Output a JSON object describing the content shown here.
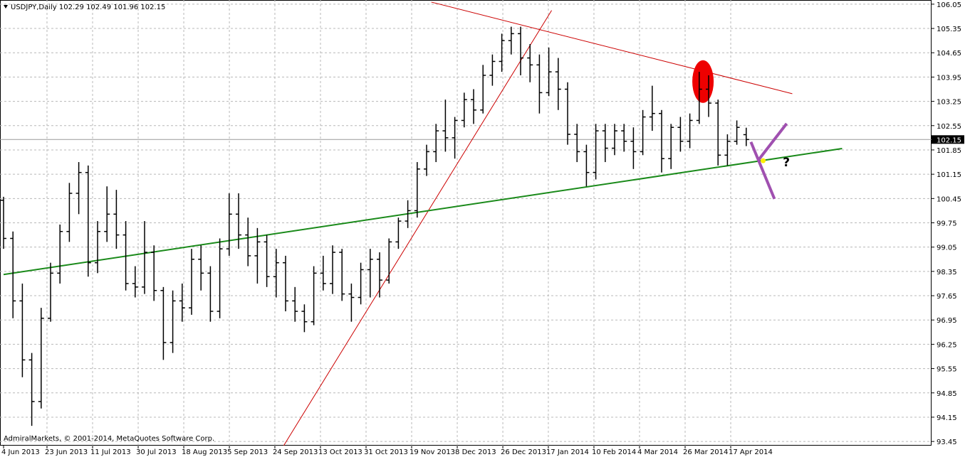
{
  "chart_data": {
    "type": "ohlc",
    "title": "USDJPY,Daily  102.29 102.49 101.96 102.15",
    "footer": "AdmiralMarkets, © 2001-2014, MetaQuotes Software Corp.",
    "color": "#000000",
    "grid": true,
    "open": [
      100.4,
      99.3,
      97.5,
      95.8,
      94.6,
      97.0,
      98.3,
      99.5,
      100.6,
      101.2,
      98.6,
      99.5,
      100.0,
      99.4,
      98.0,
      97.9,
      98.9,
      97.8,
      96.3,
      97.5,
      97.3,
      98.7,
      98.3,
      97.2,
      99.0,
      100.0,
      99.4,
      98.8,
      99.2,
      98.2,
      98.6,
      97.5,
      97.2,
      96.9,
      98.3,
      98.0,
      98.9,
      97.7,
      97.6,
      98.4,
      98.7,
      98.1,
      99.2,
      99.8,
      100.1,
      101.3,
      101.8,
      102.4,
      102.2,
      102.7,
      103.3,
      103.0,
      104.0,
      104.4,
      105.0,
      105.2,
      104.5,
      104.3,
      103.5,
      104.1,
      103.6,
      102.3,
      101.8,
      101.2,
      102.4,
      101.9,
      102.4,
      102.1,
      101.8,
      102.8,
      102.9,
      101.6,
      102.5,
      102.1,
      102.7,
      103.6,
      103.2,
      101.7,
      102.1,
      102.29
    ],
    "high": [
      100.5,
      99.5,
      98.0,
      96.0,
      97.3,
      98.6,
      99.7,
      100.9,
      101.5,
      101.4,
      99.8,
      100.8,
      100.7,
      99.8,
      98.5,
      99.8,
      99.1,
      97.9,
      97.8,
      98.0,
      99.0,
      99.1,
      98.5,
      99.3,
      100.6,
      100.6,
      99.9,
      99.6,
      99.4,
      99.0,
      98.8,
      97.9,
      97.4,
      98.5,
      98.8,
      99.1,
      99.0,
      98.0,
      98.6,
      99.0,
      98.9,
      99.3,
      99.9,
      100.4,
      101.5,
      102.0,
      102.6,
      103.3,
      102.8,
      103.5,
      103.6,
      104.3,
      104.6,
      105.2,
      105.4,
      105.4,
      104.9,
      104.6,
      104.8,
      104.5,
      103.8,
      102.6,
      102.0,
      102.6,
      102.6,
      102.6,
      102.6,
      102.5,
      103.0,
      103.7,
      103.0,
      102.6,
      102.8,
      102.9,
      104.1,
      104.0,
      103.3,
      102.3,
      102.7,
      102.49
    ],
    "low": [
      99.0,
      97.0,
      95.3,
      93.9,
      94.4,
      96.9,
      98.0,
      99.2,
      100.0,
      98.2,
      98.3,
      99.2,
      99.0,
      97.8,
      97.6,
      97.7,
      97.5,
      95.8,
      96.0,
      96.9,
      97.1,
      97.8,
      96.9,
      97.0,
      98.8,
      99.0,
      98.5,
      98.0,
      97.9,
      97.6,
      97.2,
      96.9,
      96.6,
      96.8,
      97.8,
      97.7,
      97.5,
      96.9,
      97.4,
      97.6,
      97.6,
      98.0,
      99.0,
      99.6,
      99.9,
      101.1,
      101.5,
      101.8,
      101.6,
      102.5,
      102.6,
      102.9,
      103.7,
      104.1,
      104.6,
      104.0,
      103.8,
      102.9,
      103.4,
      103.0,
      102.0,
      101.5,
      100.8,
      101.0,
      101.5,
      101.7,
      101.8,
      101.3,
      101.7,
      102.4,
      101.2,
      101.3,
      101.8,
      101.9,
      102.6,
      102.8,
      101.4,
      101.4,
      102.0,
      101.96
    ],
    "close": [
      99.3,
      97.5,
      95.8,
      94.6,
      97.0,
      98.3,
      99.5,
      100.6,
      101.2,
      98.6,
      99.5,
      100.0,
      99.4,
      98.0,
      97.9,
      98.9,
      97.8,
      96.3,
      97.5,
      97.3,
      98.7,
      98.3,
      97.2,
      99.0,
      100.0,
      99.4,
      98.8,
      99.2,
      98.2,
      98.6,
      97.5,
      97.2,
      96.9,
      98.3,
      98.0,
      98.9,
      97.7,
      97.6,
      98.4,
      98.7,
      98.1,
      99.2,
      99.8,
      100.1,
      101.3,
      101.8,
      102.4,
      102.2,
      102.7,
      103.3,
      103.0,
      104.0,
      104.4,
      105.0,
      105.2,
      104.5,
      104.3,
      103.5,
      104.1,
      103.6,
      102.3,
      101.8,
      101.2,
      102.4,
      101.9,
      102.4,
      102.1,
      101.8,
      102.8,
      102.9,
      101.6,
      102.5,
      102.1,
      102.7,
      103.6,
      103.2,
      101.7,
      102.1,
      102.5,
      102.15
    ],
    "ylim": [
      93.33,
      106.17
    ],
    "yticks": [
      93.45,
      94.15,
      94.85,
      95.55,
      96.25,
      96.95,
      97.65,
      98.35,
      99.05,
      99.75,
      100.45,
      101.15,
      101.85,
      102.55,
      103.25,
      103.95,
      104.65,
      105.35,
      106.05
    ],
    "xticks": [
      {
        "value": 0,
        "label": "4 Jun 2013"
      },
      {
        "value": 4.62,
        "label": "23 Jun 2013"
      },
      {
        "value": 9.47,
        "label": "11 Jul 2013"
      },
      {
        "value": 14.32,
        "label": "30 Jul 2013"
      },
      {
        "value": 19.17,
        "label": "18 Aug 2013"
      },
      {
        "value": 24.02,
        "label": "5 Sep 2013"
      },
      {
        "value": 28.86,
        "label": "24 Sep 2013"
      },
      {
        "value": 33.71,
        "label": "13 Oct 2013"
      },
      {
        "value": 38.56,
        "label": "31 Oct 2013"
      },
      {
        "value": 43.41,
        "label": "19 Nov 2013"
      },
      {
        "value": 48.26,
        "label": "8 Dec 2013"
      },
      {
        "value": 53.11,
        "label": "26 Dec 2013"
      },
      {
        "value": 57.95,
        "label": "17 Jan 2014"
      },
      {
        "value": 62.8,
        "label": "10 Feb 2014"
      },
      {
        "value": 67.65,
        "label": "4 Mar 2014"
      },
      {
        "value": 72.5,
        "label": "26 Mar 2014"
      },
      {
        "value": 77.35,
        "label": "17 Apr 2014"
      }
    ],
    "trendlines": [
      {
        "color": "#cc0000",
        "x": [
          29.8,
          58.3
        ],
        "y": [
          93.33,
          105.87
        ]
      },
      {
        "color": "#cc0000",
        "x": [
          45.5,
          83.9
        ],
        "y": [
          106.11,
          103.47
        ]
      },
      {
        "color": "#1a8a1a",
        "x": [
          0,
          89.2
        ],
        "y": [
          98.26,
          101.89
        ]
      },
      {
        "color": "#a050b0",
        "x": [
          79.5,
          82.0
        ],
        "y": [
          102.08,
          100.44
        ]
      },
      {
        "color": "#a050b0",
        "x": [
          80.3,
          83.3
        ],
        "y": [
          101.56,
          102.61
        ]
      }
    ],
    "highlight": {
      "color": "#ee0000",
      "x": 74.4,
      "y": 103.82
    },
    "marker": {
      "color": "#ffee00",
      "x": 80.8,
      "y": 101.54
    },
    "annotation": {
      "text": "?",
      "x": 82.9,
      "y": 101.38
    }
  }
}
